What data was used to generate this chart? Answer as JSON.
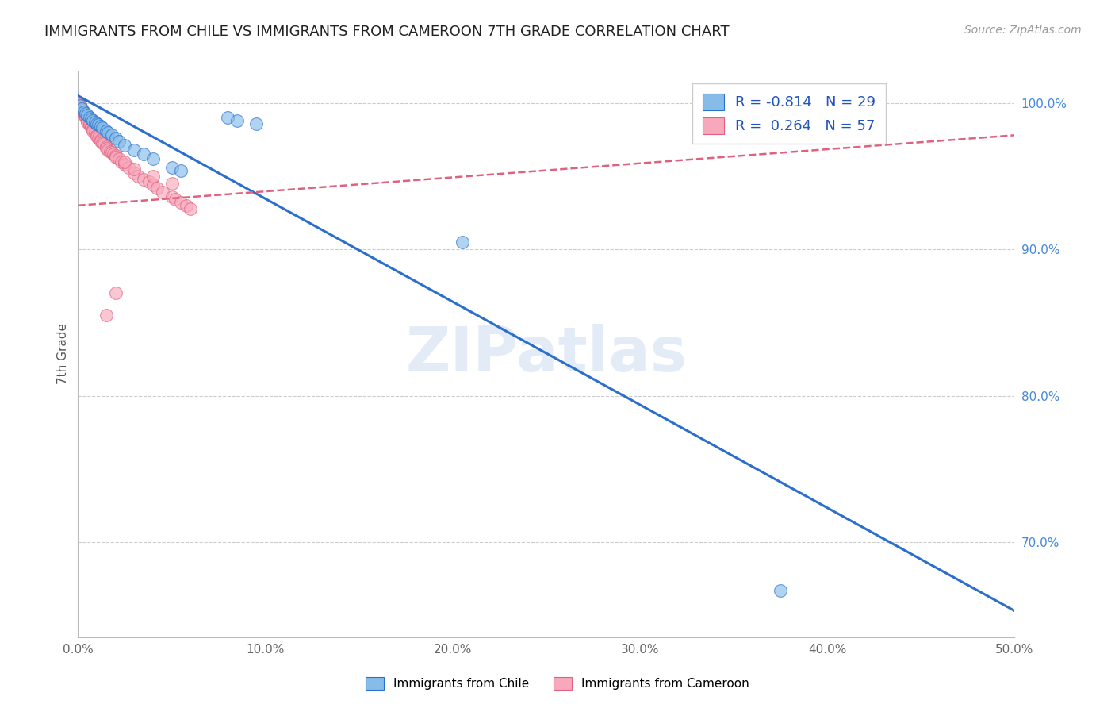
{
  "title": "IMMIGRANTS FROM CHILE VS IMMIGRANTS FROM CAMEROON 7TH GRADE CORRELATION CHART",
  "source": "Source: ZipAtlas.com",
  "ylabel": "7th Grade",
  "r_chile": -0.814,
  "n_chile": 29,
  "r_cameroon": 0.264,
  "n_cameroon": 57,
  "color_chile": "#85bce8",
  "color_cameroon": "#f7a8bb",
  "color_chile_line": "#2b6fcc",
  "color_cameroon_line": "#e06080",
  "watermark": "ZIPatlas",
  "legend_label_chile": "Immigrants from Chile",
  "legend_label_cameroon": "Immigrants from Cameroon",
  "xlim": [
    0.0,
    0.5
  ],
  "ylim": [
    0.635,
    1.022
  ],
  "y_tick_vals": [
    0.7,
    0.8,
    0.9,
    1.0
  ],
  "y_tick_labels": [
    "70.0%",
    "80.0%",
    "90.0%",
    "100.0%"
  ],
  "x_tick_vals": [
    0.0,
    0.1,
    0.2,
    0.3,
    0.4,
    0.5
  ],
  "x_tick_labels": [
    "0.0%",
    "10.0%",
    "20.0%",
    "30.0%",
    "40.0%",
    "50.0%"
  ],
  "chile_line_x0": 0.0,
  "chile_line_y0": 1.005,
  "chile_line_x1": 0.5,
  "chile_line_y1": 0.653,
  "cameroon_line_x0": 0.0,
  "cameroon_line_y0": 0.93,
  "cameroon_line_x1": 0.5,
  "cameroon_line_y1": 0.978,
  "chile_scatter_x": [
    0.001,
    0.002,
    0.003,
    0.004,
    0.005,
    0.006,
    0.007,
    0.008,
    0.009,
    0.01,
    0.011,
    0.012,
    0.013,
    0.015,
    0.016,
    0.018,
    0.02,
    0.022,
    0.025,
    0.03,
    0.035,
    0.04,
    0.05,
    0.055,
    0.08,
    0.085,
    0.095,
    0.205,
    0.375
  ],
  "chile_scatter_y": [
    0.998,
    0.996,
    0.994,
    0.993,
    0.992,
    0.99,
    0.989,
    0.988,
    0.987,
    0.986,
    0.985,
    0.984,
    0.983,
    0.981,
    0.98,
    0.978,
    0.976,
    0.974,
    0.971,
    0.968,
    0.965,
    0.962,
    0.956,
    0.954,
    0.99,
    0.988,
    0.986,
    0.905,
    0.667
  ],
  "cameroon_scatter_x": [
    0.001,
    0.001,
    0.001,
    0.002,
    0.002,
    0.002,
    0.003,
    0.003,
    0.004,
    0.004,
    0.005,
    0.005,
    0.005,
    0.006,
    0.006,
    0.007,
    0.007,
    0.008,
    0.008,
    0.009,
    0.01,
    0.01,
    0.011,
    0.012,
    0.012,
    0.013,
    0.014,
    0.015,
    0.015,
    0.016,
    0.017,
    0.018,
    0.019,
    0.02,
    0.02,
    0.022,
    0.023,
    0.025,
    0.027,
    0.03,
    0.032,
    0.035,
    0.038,
    0.04,
    0.042,
    0.045,
    0.05,
    0.052,
    0.055,
    0.058,
    0.06,
    0.025,
    0.03,
    0.04,
    0.05,
    0.02,
    0.015
  ],
  "cameroon_scatter_y": [
    0.999,
    0.998,
    0.997,
    0.996,
    0.995,
    0.994,
    0.993,
    0.992,
    0.991,
    0.99,
    0.989,
    0.988,
    0.987,
    0.986,
    0.985,
    0.984,
    0.983,
    0.982,
    0.981,
    0.98,
    0.978,
    0.977,
    0.976,
    0.975,
    0.974,
    0.973,
    0.972,
    0.97,
    0.969,
    0.968,
    0.967,
    0.966,
    0.965,
    0.964,
    0.963,
    0.962,
    0.96,
    0.958,
    0.956,
    0.952,
    0.95,
    0.948,
    0.946,
    0.944,
    0.942,
    0.939,
    0.936,
    0.934,
    0.932,
    0.93,
    0.928,
    0.96,
    0.955,
    0.95,
    0.945,
    0.87,
    0.855
  ]
}
